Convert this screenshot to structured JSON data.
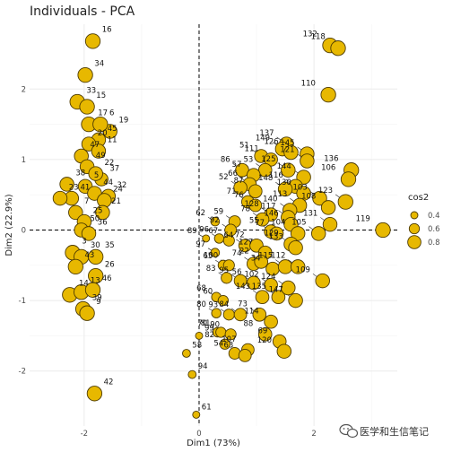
{
  "chart_data": {
    "type": "scatter",
    "title": "Individuals - PCA",
    "xlabel": "Dim1 (73%)",
    "ylabel": "Dim2 (22.9%)",
    "xlim": [
      -2.95,
      3.45
    ],
    "ylim": [
      -2.78,
      2.92
    ],
    "x_ticks": [
      -2,
      0,
      2
    ],
    "y_ticks": [
      -2,
      -1,
      0,
      1,
      2
    ],
    "grid": true,
    "reference_lines": {
      "x": 0,
      "y": 0,
      "style": "dashed"
    },
    "legend": {
      "title": "cos2",
      "placement": "right",
      "items": [
        {
          "label": "0.4",
          "value": 0.4
        },
        {
          "label": "0.6",
          "value": 0.6
        },
        {
          "label": "0.8",
          "value": 0.8
        }
      ]
    },
    "colors": {
      "fill": "#E7B800",
      "stroke": "#4d3b00",
      "grid": "#ebebeb"
    },
    "points": [
      {
        "label": "16",
        "x": -1.85,
        "y": 2.68,
        "cos2": 0.9
      },
      {
        "label": "34",
        "x": -1.98,
        "y": 2.2,
        "cos2": 0.9
      },
      {
        "label": "33",
        "x": -2.12,
        "y": 1.82,
        "cos2": 0.9
      },
      {
        "label": "15",
        "x": -1.95,
        "y": 1.75,
        "cos2": 0.9
      },
      {
        "label": "17",
        "x": -1.92,
        "y": 1.5,
        "cos2": 0.9
      },
      {
        "label": "6",
        "x": -1.72,
        "y": 1.5,
        "cos2": 0.9
      },
      {
        "label": "19",
        "x": -1.55,
        "y": 1.4,
        "cos2": 0.85
      },
      {
        "label": "45",
        "x": -1.75,
        "y": 1.28,
        "cos2": 0.85
      },
      {
        "label": "20",
        "x": -1.92,
        "y": 1.22,
        "cos2": 0.85
      },
      {
        "label": "11",
        "x": -1.75,
        "y": 1.12,
        "cos2": 0.85
      },
      {
        "label": "47",
        "x": -2.05,
        "y": 1.05,
        "cos2": 0.85
      },
      {
        "label": "49",
        "x": -1.95,
        "y": 0.9,
        "cos2": 0.85
      },
      {
        "label": "22",
        "x": -1.8,
        "y": 0.8,
        "cos2": 0.85
      },
      {
        "label": "37",
        "x": -1.7,
        "y": 0.72,
        "cos2": 0.8
      },
      {
        "label": "38",
        "x": -2.3,
        "y": 0.65,
        "cos2": 0.85
      },
      {
        "label": "5",
        "x": -1.98,
        "y": 0.62,
        "cos2": 0.85
      },
      {
        "label": "44",
        "x": -1.82,
        "y": 0.52,
        "cos2": 0.85
      },
      {
        "label": "41",
        "x": -2.22,
        "y": 0.45,
        "cos2": 0.85
      },
      {
        "label": "32",
        "x": -1.58,
        "y": 0.48,
        "cos2": 0.85
      },
      {
        "label": "24",
        "x": -1.65,
        "y": 0.42,
        "cos2": 0.85
      },
      {
        "label": "23",
        "x": -2.42,
        "y": 0.45,
        "cos2": 0.85
      },
      {
        "label": "7",
        "x": -2.15,
        "y": 0.25,
        "cos2": 0.85
      },
      {
        "label": "21",
        "x": -1.68,
        "y": 0.25,
        "cos2": 0.85
      },
      {
        "label": "25",
        "x": -2.0,
        "y": 0.12,
        "cos2": 0.85
      },
      {
        "label": "50",
        "x": -2.05,
        "y": 0.0,
        "cos2": 0.85
      },
      {
        "label": "36",
        "x": -1.92,
        "y": -0.05,
        "cos2": 0.85
      },
      {
        "label": "3",
        "x": -2.2,
        "y": -0.32,
        "cos2": 0.9
      },
      {
        "label": "30",
        "x": -2.05,
        "y": -0.38,
        "cos2": 0.9
      },
      {
        "label": "35",
        "x": -1.8,
        "y": -0.38,
        "cos2": 0.9
      },
      {
        "label": "43",
        "x": -2.15,
        "y": -0.52,
        "cos2": 0.9
      },
      {
        "label": "26",
        "x": -1.8,
        "y": -0.65,
        "cos2": 0.9
      },
      {
        "label": "14",
        "x": -2.25,
        "y": -0.92,
        "cos2": 0.9
      },
      {
        "label": "13",
        "x": -2.05,
        "y": -0.88,
        "cos2": 0.9
      },
      {
        "label": "46",
        "x": -1.85,
        "y": -0.85,
        "cos2": 0.9
      },
      {
        "label": "39",
        "x": -2.02,
        "y": -1.12,
        "cos2": 0.9
      },
      {
        "label": "9",
        "x": -1.95,
        "y": -1.18,
        "cos2": 0.9
      },
      {
        "label": "42",
        "x": -1.82,
        "y": -2.32,
        "cos2": 0.9
      },
      {
        "label": "132",
        "x": 2.28,
        "y": 2.62,
        "cos2": 0.9
      },
      {
        "label": "118",
        "x": 2.42,
        "y": 2.58,
        "cos2": 0.9
      },
      {
        "label": "110",
        "x": 2.25,
        "y": 1.92,
        "cos2": 0.9
      },
      {
        "label": "137",
        "x": 1.52,
        "y": 1.22,
        "cos2": 0.85
      },
      {
        "label": "149",
        "x": 1.45,
        "y": 1.15,
        "cos2": 0.85
      },
      {
        "label": "126",
        "x": 1.6,
        "y": 1.1,
        "cos2": 0.85
      },
      {
        "label": "145",
        "x": 1.88,
        "y": 1.08,
        "cos2": 0.85
      },
      {
        "label": "51",
        "x": 1.08,
        "y": 1.05,
        "cos2": 0.8
      },
      {
        "label": "111",
        "x": 1.25,
        "y": 1.0,
        "cos2": 0.8
      },
      {
        "label": "121",
        "x": 1.88,
        "y": 0.98,
        "cos2": 0.85
      },
      {
        "label": "86",
        "x": 0.75,
        "y": 0.85,
        "cos2": 0.8
      },
      {
        "label": "53",
        "x": 1.15,
        "y": 0.85,
        "cos2": 0.8
      },
      {
        "label": "125",
        "x": 1.55,
        "y": 0.85,
        "cos2": 0.85
      },
      {
        "label": "136",
        "x": 2.65,
        "y": 0.85,
        "cos2": 0.9
      },
      {
        "label": "57",
        "x": 0.95,
        "y": 0.78,
        "cos2": 0.8
      },
      {
        "label": "144",
        "x": 1.82,
        "y": 0.75,
        "cos2": 0.85
      },
      {
        "label": "106",
        "x": 2.6,
        "y": 0.72,
        "cos2": 0.9
      },
      {
        "label": "66",
        "x": 0.88,
        "y": 0.65,
        "cos2": 0.8
      },
      {
        "label": "52",
        "cos2": 0.8,
        "x": 0.72,
        "y": 0.6
      },
      {
        "label": "116",
        "x": 1.68,
        "y": 0.62,
        "cos2": 0.85
      },
      {
        "label": "87",
        "x": 0.98,
        "y": 0.55,
        "cos2": 0.8
      },
      {
        "label": "148",
        "x": 1.5,
        "y": 0.58,
        "cos2": 0.85
      },
      {
        "label": "130",
        "x": 1.82,
        "y": 0.52,
        "cos2": 0.85
      },
      {
        "label": "103",
        "x": 2.1,
        "y": 0.45,
        "cos2": 0.85
      },
      {
        "label": "123",
        "x": 2.55,
        "y": 0.4,
        "cos2": 0.9
      },
      {
        "label": "71",
        "x": 0.85,
        "y": 0.4,
        "cos2": 0.75
      },
      {
        "label": "76",
        "x": 0.98,
        "y": 0.35,
        "cos2": 0.75
      },
      {
        "label": "113",
        "x": 1.75,
        "y": 0.35,
        "cos2": 0.85
      },
      {
        "label": "108",
        "x": 2.25,
        "y": 0.32,
        "cos2": 0.85
      },
      {
        "label": "140",
        "x": 1.58,
        "y": 0.28,
        "cos2": 0.85
      },
      {
        "label": "128",
        "x": 1.25,
        "y": 0.22,
        "cos2": 0.8
      },
      {
        "label": "117",
        "x": 1.55,
        "y": 0.18,
        "cos2": 0.85
      },
      {
        "label": "62",
        "x": 0.28,
        "y": 0.12,
        "cos2": 0.5
      },
      {
        "label": "59",
        "x": 0.62,
        "y": 0.12,
        "cos2": 0.7
      },
      {
        "label": "78",
        "x": 1.1,
        "y": 0.15,
        "cos2": 0.8
      },
      {
        "label": "146",
        "x": 1.6,
        "y": 0.08,
        "cos2": 0.85
      },
      {
        "label": "131",
        "x": 2.28,
        "y": 0.08,
        "cos2": 0.85
      },
      {
        "label": "119",
        "x": 3.2,
        "y": 0.0,
        "cos2": 0.9
      },
      {
        "label": "92",
        "x": 0.55,
        "y": 0.0,
        "cos2": 0.7
      },
      {
        "label": "55",
        "x": 1.25,
        "y": -0.02,
        "cos2": 0.8
      },
      {
        "label": "77",
        "x": 1.35,
        "y": -0.05,
        "cos2": 0.8
      },
      {
        "label": "104",
        "x": 1.72,
        "y": -0.05,
        "cos2": 0.85
      },
      {
        "label": "105",
        "x": 2.08,
        "y": -0.05,
        "cos2": 0.85
      },
      {
        "label": "89",
        "x": 0.12,
        "y": -0.12,
        "cos2": 0.4
      },
      {
        "label": "96",
        "x": 0.35,
        "y": -0.12,
        "cos2": 0.55
      },
      {
        "label": "67",
        "x": 0.52,
        "y": -0.15,
        "cos2": 0.65
      },
      {
        "label": "64",
        "x": 0.8,
        "y": -0.22,
        "cos2": 0.75
      },
      {
        "label": "72",
        "x": 1.0,
        "y": -0.22,
        "cos2": 0.8
      },
      {
        "label": "129",
        "x": 1.6,
        "y": -0.2,
        "cos2": 0.85
      },
      {
        "label": "133",
        "x": 1.68,
        "y": -0.25,
        "cos2": 0.85
      },
      {
        "label": "97",
        "x": 0.28,
        "y": -0.32,
        "cos2": 0.5
      },
      {
        "label": "127",
        "x": 1.15,
        "y": -0.32,
        "cos2": 0.8
      },
      {
        "label": "65",
        "x": 0.42,
        "y": -0.5,
        "cos2": 0.6
      },
      {
        "label": "100",
        "x": 0.52,
        "y": -0.5,
        "cos2": 0.65
      },
      {
        "label": "74",
        "x": 0.95,
        "y": -0.48,
        "cos2": 0.8
      },
      {
        "label": "22b",
        "x": 1.08,
        "y": -0.45,
        "cos2": 0.8
      },
      {
        "label": "34b",
        "x": 1.28,
        "y": -0.55,
        "cos2": 0.8
      },
      {
        "label": "115",
        "x": 1.5,
        "y": -0.52,
        "cos2": 0.85
      },
      {
        "label": "112",
        "x": 1.72,
        "y": -0.52,
        "cos2": 0.85
      },
      {
        "label": "83",
        "x": 0.48,
        "y": -0.68,
        "cos2": 0.65
      },
      {
        "label": "95",
        "x": 0.72,
        "y": -0.72,
        "cos2": 0.75
      },
      {
        "label": "56",
        "x": 0.95,
        "y": -0.75,
        "cos2": 0.8
      },
      {
        "label": "109",
        "x": 2.15,
        "y": -0.72,
        "cos2": 0.85
      },
      {
        "label": "102",
        "x": 1.25,
        "y": -0.78,
        "cos2": 0.8
      },
      {
        "label": "124",
        "x": 1.55,
        "y": -0.82,
        "cos2": 0.85
      },
      {
        "label": "143",
        "x": 1.1,
        "y": -0.95,
        "cos2": 0.8
      },
      {
        "label": "135",
        "x": 1.38,
        "y": -0.95,
        "cos2": 0.8
      },
      {
        "label": "147",
        "x": 1.68,
        "y": -1.0,
        "cos2": 0.85
      },
      {
        "label": "68",
        "x": 0.3,
        "y": -0.95,
        "cos2": 0.55
      },
      {
        "label": "60",
        "x": 0.42,
        "y": -1.0,
        "cos2": 0.6
      },
      {
        "label": "80",
        "x": 0.3,
        "y": -1.18,
        "cos2": 0.55
      },
      {
        "label": "93",
        "x": 0.52,
        "y": -1.2,
        "cos2": 0.65
      },
      {
        "label": "84",
        "x": 0.72,
        "y": -1.2,
        "cos2": 0.75
      },
      {
        "label": "73",
        "x": 1.05,
        "y": -1.2,
        "cos2": 0.8
      },
      {
        "label": "114",
        "x": 1.25,
        "y": -1.3,
        "cos2": 0.8
      },
      {
        "label": "70",
        "x": 0.32,
        "y": -1.45,
        "cos2": 0.55
      },
      {
        "label": "81",
        "x": 0.38,
        "y": -1.45,
        "cos2": 0.6
      },
      {
        "label": "90",
        "x": 0.55,
        "y": -1.48,
        "cos2": 0.65
      },
      {
        "label": "88",
        "x": 1.15,
        "y": -1.48,
        "cos2": 0.8
      },
      {
        "label": "69",
        "x": 1.4,
        "y": -1.58,
        "cos2": 0.8
      },
      {
        "label": "99",
        "x": 0.0,
        "y": -1.5,
        "cos2": 0.4
      },
      {
        "label": "82",
        "x": 0.45,
        "y": -1.62,
        "cos2": 0.6
      },
      {
        "label": "107",
        "x": 0.85,
        "y": -1.7,
        "cos2": 0.75
      },
      {
        "label": "58",
        "x": -0.22,
        "y": -1.75,
        "cos2": 0.45
      },
      {
        "label": "54",
        "x": 0.62,
        "y": -1.75,
        "cos2": 0.7
      },
      {
        "label": "63",
        "x": 0.8,
        "y": -1.78,
        "cos2": 0.75
      },
      {
        "label": "120",
        "x": 1.48,
        "y": -1.72,
        "cos2": 0.85
      },
      {
        "label": "94",
        "x": -0.12,
        "y": -2.05,
        "cos2": 0.45
      },
      {
        "label": "61",
        "x": -0.05,
        "y": -2.62,
        "cos2": 0.4
      }
    ]
  },
  "watermark": {
    "text": "医学和生信笔记",
    "icon": "wechat-icon"
  }
}
